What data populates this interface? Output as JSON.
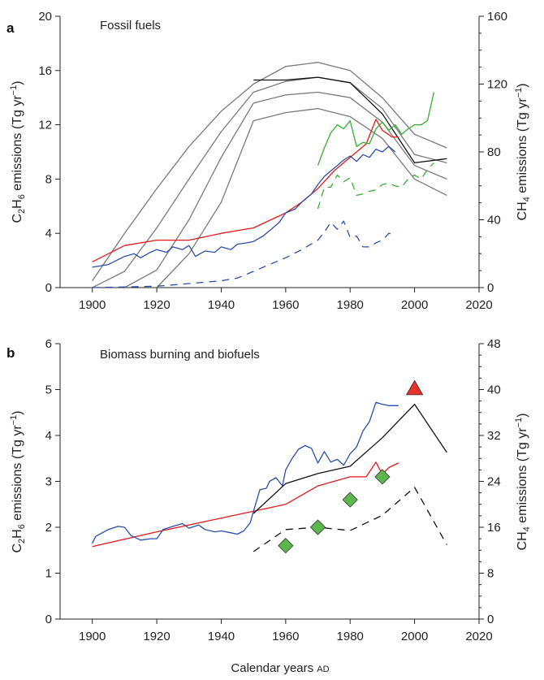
{
  "xlabel": {
    "main": "Calendar years ",
    "suffix": "AD"
  },
  "chart_data": [
    {
      "type": "line",
      "panel_letter": "a",
      "title": "Fossil fuels",
      "xlim": [
        1890,
        2020
      ],
      "xticks": [
        1900,
        1920,
        1940,
        1960,
        1980,
        2000,
        2020
      ],
      "ylim_left": [
        0,
        20
      ],
      "yticks_left": [
        0,
        4,
        8,
        12,
        16,
        20
      ],
      "ylim_right": [
        0,
        160
      ],
      "yticks_right": [
        0,
        40,
        80,
        120,
        160
      ],
      "ylabel_left": {
        "pre": "C",
        "s1": "2",
        "mid": "H",
        "s2": "6",
        "post": " emissions (Tg yr",
        "sup": "−1",
        "end": ")"
      },
      "ylabel_right": {
        "pre": "CH",
        "s1": "4",
        "post": " emissions (Tg yr",
        "sup": "−1",
        "end": ")"
      },
      "series": [
        {
          "color": "#7a7a7a",
          "dash": "solid",
          "axis": "left",
          "x": [
            1900,
            1910,
            1920,
            1930,
            1940,
            1950,
            1960,
            1970,
            1980,
            1990,
            2000,
            2010
          ],
          "y": [
            0.5,
            4.0,
            7.3,
            10.4,
            13.0,
            15.0,
            16.3,
            16.6,
            16.0,
            14.0,
            11.3,
            10.3
          ]
        },
        {
          "color": "#7a7a7a",
          "dash": "solid",
          "axis": "left",
          "x": [
            1900,
            1910,
            1920,
            1930,
            1940,
            1950,
            1960,
            1970,
            1980,
            1990,
            2000,
            2010
          ],
          "y": [
            0.0,
            1.2,
            4.4,
            8.0,
            11.5,
            14.4,
            15.2,
            15.5,
            15.1,
            13.2,
            9.8,
            9.2
          ]
        },
        {
          "color": "#7a7a7a",
          "dash": "solid",
          "axis": "left",
          "x": [
            1910,
            1920,
            1930,
            1940,
            1950,
            1960,
            1970,
            1980,
            1990,
            2000,
            2010
          ],
          "y": [
            0.0,
            1.3,
            5.0,
            9.6,
            13.6,
            14.2,
            14.4,
            14.0,
            12.2,
            9.0,
            8.0
          ]
        },
        {
          "color": "#7a7a7a",
          "dash": "solid",
          "axis": "left",
          "x": [
            1920,
            1930,
            1940,
            1950,
            1960,
            1970,
            1980,
            1990,
            2000,
            2010
          ],
          "y": [
            0.0,
            2.5,
            6.3,
            12.3,
            12.9,
            13.2,
            12.6,
            11.0,
            8.0,
            6.8
          ]
        },
        {
          "color": "#111111",
          "dash": "solid",
          "axis": "left",
          "x": [
            1950,
            1960,
            1970,
            1980,
            1990,
            2000,
            2010
          ],
          "y": [
            15.3,
            15.3,
            15.5,
            15.1,
            12.8,
            9.2,
            9.5
          ]
        },
        {
          "color": "#e41a1c",
          "dash": "solid",
          "axis": "left",
          "x": [
            1900,
            1910,
            1920,
            1930,
            1940,
            1950,
            1960,
            1965,
            1970,
            1975,
            1980,
            1985,
            1988,
            1990,
            1993,
            1995
          ],
          "y": [
            1.9,
            3.1,
            3.5,
            3.5,
            4.0,
            4.4,
            5.5,
            6.3,
            7.3,
            8.6,
            9.6,
            10.6,
            12.4,
            11.6,
            11.1,
            11.1
          ]
        },
        {
          "color": "#2b4ea8",
          "dash": "solid",
          "axis": "left",
          "x": [
            1900,
            1905,
            1910,
            1913,
            1915,
            1918,
            1920,
            1923,
            1925,
            1928,
            1930,
            1932,
            1935,
            1938,
            1940,
            1943,
            1945,
            1948,
            1950,
            1953,
            1955,
            1958,
            1960,
            1963,
            1965,
            1968,
            1970,
            1972,
            1974,
            1976,
            1978,
            1980,
            1982,
            1984,
            1986,
            1988,
            1990,
            1992,
            1994
          ],
          "y": [
            1.5,
            1.7,
            2.3,
            2.5,
            2.2,
            2.6,
            2.8,
            2.6,
            3.0,
            2.8,
            3.1,
            2.3,
            2.7,
            2.6,
            3.0,
            2.8,
            3.2,
            3.3,
            3.4,
            3.8,
            4.2,
            4.8,
            5.5,
            5.8,
            6.3,
            6.9,
            7.6,
            8.2,
            8.6,
            9.0,
            9.4,
            9.7,
            9.3,
            9.8,
            9.6,
            10.2,
            10.0,
            10.4,
            10.0
          ]
        },
        {
          "color": "#2b4ea8",
          "dash": "dashed",
          "axis": "left",
          "x": [
            1900,
            1910,
            1920,
            1925,
            1930,
            1935,
            1940,
            1945,
            1950,
            1955,
            1960,
            1965,
            1970,
            1972,
            1974,
            1976,
            1978,
            1980,
            1982,
            1984,
            1986,
            1988,
            1990,
            1992,
            1994
          ],
          "y": [
            0.0,
            0.05,
            0.1,
            0.2,
            0.3,
            0.4,
            0.5,
            0.7,
            1.2,
            1.7,
            2.2,
            2.8,
            3.5,
            4.1,
            4.8,
            4.3,
            4.9,
            3.7,
            3.8,
            3.0,
            3.0,
            3.3,
            3.5,
            4.0,
            3.9
          ]
        },
        {
          "color": "#3aaa35",
          "dash": "solid",
          "axis": "left",
          "x": [
            1970,
            1972,
            1974,
            1976,
            1978,
            1980,
            1982,
            1984,
            1986,
            1988,
            1990,
            1992,
            1994,
            1996,
            1998,
            2000,
            2002,
            2004,
            2006
          ],
          "y": [
            9.0,
            10.3,
            11.4,
            12.0,
            11.7,
            12.3,
            10.4,
            10.7,
            10.6,
            11.7,
            12.2,
            11.6,
            12.0,
            11.3,
            11.7,
            12.0,
            12.0,
            12.3,
            14.4
          ]
        },
        {
          "color": "#3aaa35",
          "dash": "dashed",
          "axis": "left",
          "x": [
            1970,
            1972,
            1974,
            1976,
            1978,
            1980,
            1982,
            1984,
            1986,
            1988,
            1990,
            1992,
            1994,
            1996,
            1998,
            2000,
            2002,
            2004,
            2006
          ],
          "y": [
            5.8,
            7.4,
            7.4,
            8.3,
            7.8,
            8.1,
            6.8,
            6.9,
            7.1,
            7.2,
            7.6,
            7.7,
            7.5,
            7.4,
            8.0,
            8.3,
            8.0,
            8.7,
            9.2
          ]
        }
      ]
    },
    {
      "type": "line",
      "panel_letter": "b",
      "title": "Biomass burning and biofuels",
      "xlim": [
        1890,
        2020
      ],
      "xticks": [
        1900,
        1920,
        1940,
        1960,
        1980,
        2000,
        2020
      ],
      "ylim_left": [
        0,
        6
      ],
      "yticks_left": [
        0,
        1,
        2,
        3,
        4,
        5,
        6
      ],
      "ylim_right": [
        0,
        48
      ],
      "yticks_right": [
        0,
        8,
        16,
        24,
        32,
        40,
        48
      ],
      "ylabel_left": {
        "pre": "C",
        "s1": "2",
        "mid": "H",
        "s2": "6",
        "post": " emissions (Tg yr",
        "sup": "−1",
        "end": ")"
      },
      "ylabel_right": {
        "pre": "CH",
        "s1": "4",
        "post": " emissions (Tg yr",
        "sup": "−1",
        "end": ")"
      },
      "series": [
        {
          "color": "#e41a1c",
          "dash": "solid",
          "axis": "left",
          "x": [
            1900,
            1920,
            1940,
            1950,
            1960,
            1970,
            1980,
            1985,
            1988,
            1990,
            1992,
            1995
          ],
          "y": [
            1.58,
            1.9,
            2.2,
            2.35,
            2.5,
            2.9,
            3.1,
            3.1,
            3.42,
            3.15,
            3.3,
            3.4
          ]
        },
        {
          "color": "#2b4ea8",
          "dash": "solid",
          "axis": "left",
          "x": [
            1900,
            1901,
            1905,
            1908,
            1910,
            1912,
            1915,
            1918,
            1920,
            1922,
            1925,
            1928,
            1930,
            1933,
            1935,
            1938,
            1940,
            1943,
            1945,
            1947,
            1949,
            1950,
            1952,
            1954,
            1955,
            1957,
            1959,
            1960,
            1962,
            1964,
            1966,
            1968,
            1970,
            1972,
            1974,
            1976,
            1978,
            1980,
            1982,
            1984,
            1986,
            1988,
            1990,
            1992,
            1995
          ],
          "y": [
            1.65,
            1.8,
            1.95,
            2.02,
            2.0,
            1.82,
            1.72,
            1.75,
            1.75,
            1.95,
            2.02,
            2.08,
            1.98,
            2.05,
            1.95,
            1.9,
            1.92,
            1.88,
            1.85,
            1.92,
            2.1,
            2.35,
            2.82,
            2.85,
            3.0,
            3.08,
            2.9,
            3.25,
            3.5,
            3.7,
            3.78,
            3.72,
            3.4,
            3.65,
            3.42,
            3.48,
            3.35,
            3.6,
            3.75,
            4.1,
            4.3,
            4.72,
            4.68,
            4.65,
            4.65
          ]
        },
        {
          "color": "#111111",
          "dash": "solid",
          "axis": "left",
          "x": [
            1950,
            1960,
            1970,
            1980,
            1990,
            2000,
            2010
          ],
          "y": [
            2.3,
            2.95,
            3.17,
            3.33,
            3.95,
            4.68,
            3.63
          ]
        },
        {
          "color": "#111111",
          "dash": "dashed",
          "axis": "left",
          "x": [
            1950,
            1960,
            1970,
            1980,
            1990,
            2000,
            2010
          ],
          "y": [
            1.47,
            1.95,
            2.0,
            1.93,
            2.26,
            2.87,
            1.62
          ]
        }
      ],
      "markers": [
        {
          "shape": "diamond",
          "color": "#5cb84c",
          "x": [
            1960,
            1970,
            1980,
            1990
          ],
          "y": [
            1.6,
            2.0,
            2.6,
            3.1
          ]
        },
        {
          "shape": "triangle",
          "color": "#e8322d",
          "x": [
            2000
          ],
          "y": [
            5.02
          ]
        }
      ]
    }
  ]
}
